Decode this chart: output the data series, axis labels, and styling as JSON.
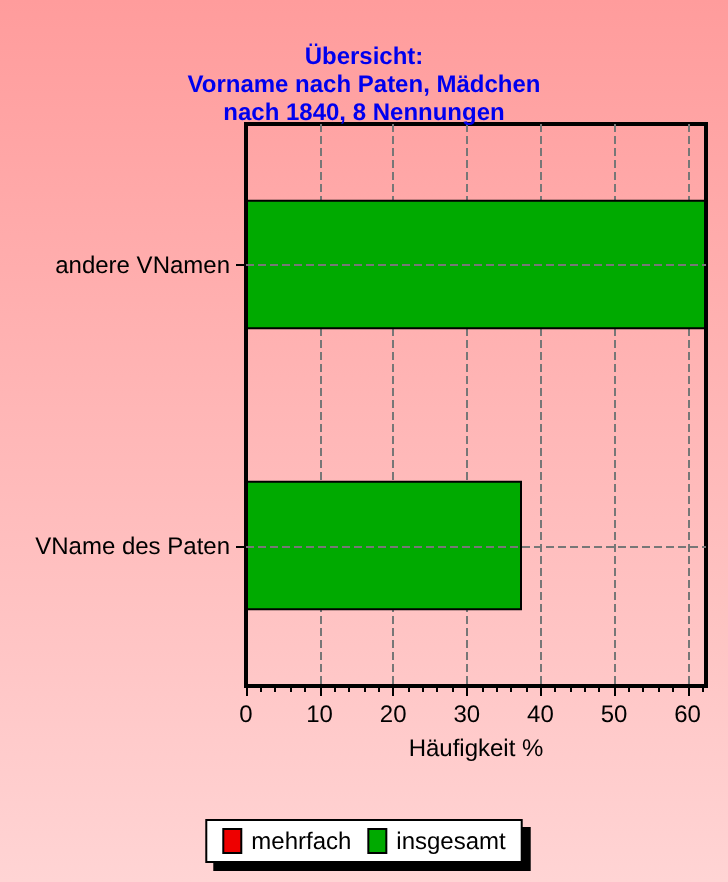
{
  "chart_data": {
    "type": "bar",
    "orientation": "horizontal",
    "title": "Übersicht:\nVorname nach Paten, Mädchen\nnach 1840, 8 Nennungen",
    "xlabel": "Häufigkeit %",
    "categories": [
      "andere VNamen",
      "VName des Paten"
    ],
    "series": [
      {
        "name": "mehrfach",
        "color": "#ee0000",
        "values": [
          null,
          null
        ]
      },
      {
        "name": "insgesamt",
        "color": "#00aa00",
        "values": [
          62.5,
          37.5
        ]
      }
    ],
    "xlim": [
      0,
      62.5
    ],
    "xticks": [
      0,
      10,
      20,
      30,
      40,
      50,
      60
    ],
    "grid": true,
    "legend": "bottom"
  }
}
